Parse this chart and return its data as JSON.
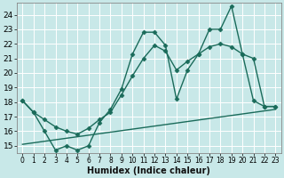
{
  "title": "",
  "xlabel": "Humidex (Indice chaleur)",
  "xlim": [
    -0.5,
    23.5
  ],
  "ylim": [
    14.5,
    24.8
  ],
  "xticks": [
    0,
    1,
    2,
    3,
    4,
    5,
    6,
    7,
    8,
    9,
    10,
    11,
    12,
    13,
    14,
    15,
    16,
    17,
    18,
    19,
    20,
    21,
    22,
    23
  ],
  "yticks": [
    15,
    16,
    17,
    18,
    19,
    20,
    21,
    22,
    23,
    24
  ],
  "bg_color": "#c8e8e8",
  "grid_color": "#ffffff",
  "line_color": "#1a6b5a",
  "series": [
    {
      "x": [
        0,
        1,
        2,
        3,
        4,
        5,
        6,
        7,
        8,
        9,
        10,
        11,
        12,
        13,
        14,
        15,
        16,
        17,
        18,
        19,
        20,
        21,
        22,
        23
      ],
      "y": [
        18.1,
        17.3,
        16.0,
        14.7,
        15.0,
        14.7,
        15.0,
        16.6,
        17.5,
        18.9,
        21.3,
        22.8,
        22.8,
        21.9,
        18.2,
        20.2,
        21.3,
        23.0,
        23.0,
        24.6,
        21.3,
        18.1,
        17.7,
        17.7
      ],
      "marker": "D",
      "markersize": 2.5,
      "linewidth": 1.0
    },
    {
      "x": [
        0,
        1,
        2,
        3,
        4,
        5,
        6,
        7,
        8,
        9,
        10,
        11,
        12,
        13,
        14,
        15,
        16,
        17,
        18,
        19,
        20,
        21,
        22,
        23
      ],
      "y": [
        18.1,
        17.3,
        16.8,
        16.3,
        16.0,
        15.8,
        16.2,
        16.8,
        17.3,
        18.5,
        19.8,
        21.0,
        21.9,
        21.5,
        20.2,
        20.8,
        21.3,
        21.8,
        22.0,
        21.8,
        21.3,
        21.0,
        17.7,
        17.7
      ],
      "marker": "D",
      "markersize": 2.5,
      "linewidth": 1.0
    },
    {
      "x": [
        0,
        23
      ],
      "y": [
        15.1,
        17.5
      ],
      "marker": null,
      "markersize": 0,
      "linewidth": 1.0
    }
  ],
  "font_size_xlabel": 7,
  "font_size_yticks": 6.5,
  "font_size_xticks": 5.5
}
